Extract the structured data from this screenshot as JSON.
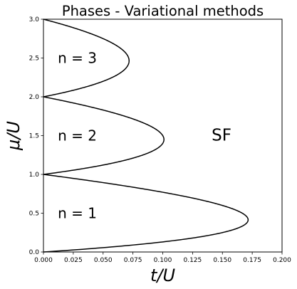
{
  "chart_data": {
    "type": "line",
    "title": "Phases - Variational methods",
    "xlabel": "t/U",
    "ylabel": "μ/U",
    "xlim": [
      0.0,
      0.2
    ],
    "ylim": [
      0.0,
      3.0
    ],
    "x_ticks": [
      "0.000",
      "0.025",
      "0.050",
      "0.075",
      "0.100",
      "0.125",
      "0.150",
      "0.175",
      "0.200"
    ],
    "y_ticks": [
      "0.0",
      "0.5",
      "1.0",
      "1.5",
      "2.0",
      "2.5",
      "3.0"
    ],
    "grid": false,
    "line_color": "#000000",
    "lobes": [
      {
        "n": 1,
        "mu_range": [
          0.0,
          1.0
        ],
        "peak_t": 0.1716,
        "peak_mu": 0.414
      },
      {
        "n": 2,
        "mu_range": [
          1.0,
          2.0
        ],
        "peak_t": 0.101,
        "peak_mu": 1.449
      },
      {
        "n": 3,
        "mu_range": [
          2.0,
          3.0
        ],
        "peak_t": 0.0718,
        "peak_mu": 2.464
      }
    ],
    "annotations": [
      {
        "text": "n = 1",
        "x": 0.012,
        "y": 0.5
      },
      {
        "text": "n = 2",
        "x": 0.012,
        "y": 1.5
      },
      {
        "text": "n = 3",
        "x": 0.012,
        "y": 2.5
      },
      {
        "text": "SF",
        "x": 0.141,
        "y": 1.5
      }
    ]
  }
}
